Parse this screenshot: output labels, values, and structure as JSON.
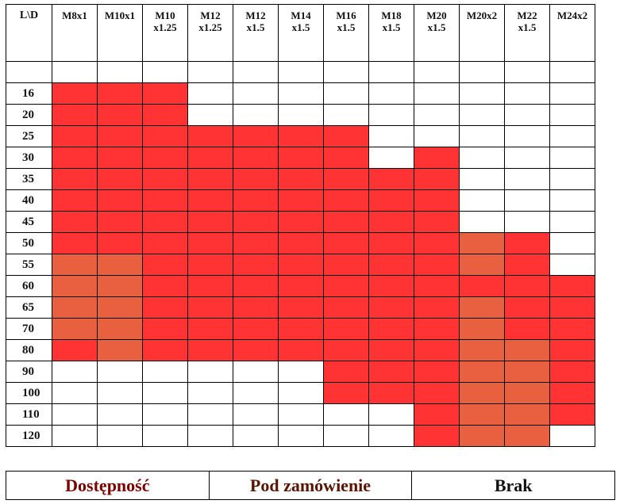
{
  "colors": {
    "available": "#ff3333",
    "on_order": "#e86040",
    "none": "#ffffff"
  },
  "corner_label": "L\\D",
  "columns": [
    [
      "M8x1"
    ],
    [
      "M10x1"
    ],
    [
      "M10",
      "x1.25"
    ],
    [
      "M12",
      "x1.25"
    ],
    [
      "M12",
      "x1.5"
    ],
    [
      "M14",
      "x1.5"
    ],
    [
      "M16",
      "x1.5"
    ],
    [
      "M18",
      "x1.5"
    ],
    [
      "M20",
      "x1.5"
    ],
    [
      "M20x2"
    ],
    [
      "M22",
      "x1.5"
    ],
    [
      "M24x2"
    ]
  ],
  "rows": [
    {
      "label": "16",
      "cells": "aaannnnnnnnn"
    },
    {
      "label": "20",
      "cells": "aaannnnnnnnn"
    },
    {
      "label": "25",
      "cells": "aaaaaaannnnn"
    },
    {
      "label": "30",
      "cells": "aaaaaaanannn"
    },
    {
      "label": "35",
      "cells": "aaaaaaaaannn"
    },
    {
      "label": "40",
      "cells": "aaaaaaaaannn"
    },
    {
      "label": "45",
      "cells": "aaaaaaaaannn"
    },
    {
      "label": "50",
      "cells": "aaaaaaaaaoan"
    },
    {
      "label": "55",
      "cells": "ooaaaaaaaoan"
    },
    {
      "label": "60",
      "cells": "ooaaaaaaaaaa"
    },
    {
      "label": "65",
      "cells": "ooaaaaaaaoaa"
    },
    {
      "label": "70",
      "cells": "ooaaaaaaaoaa"
    },
    {
      "label": "80",
      "cells": "aoaaaaaaaooa"
    },
    {
      "label": "90",
      "cells": "nnnnnnaaaooa"
    },
    {
      "label": "100",
      "cells": "nnnnnnaaaooa"
    },
    {
      "label": "110",
      "cells": "nnnnnnnnaooa"
    },
    {
      "label": "120",
      "cells": "nnnnnnnnaoon"
    }
  ],
  "legend": {
    "available": "Dostępność",
    "on_order": "Pod zamówienie",
    "none": "Brak"
  }
}
